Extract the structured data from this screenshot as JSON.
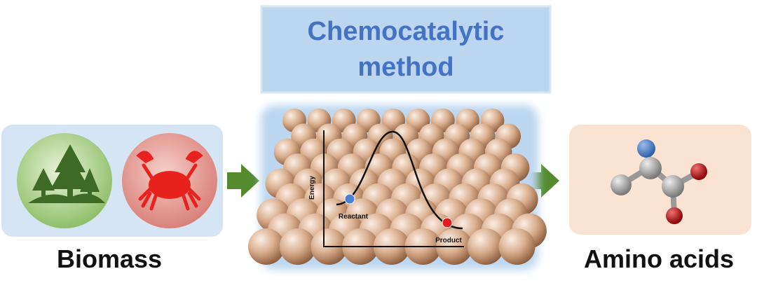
{
  "title": {
    "line1": "Chemocatalytic",
    "line2": "method"
  },
  "labels": {
    "input": "Biomass",
    "output": "Amino acids"
  },
  "energy_diagram": {
    "y_axis": "Energy",
    "reactant": "Reactant",
    "product": "Product"
  }
}
